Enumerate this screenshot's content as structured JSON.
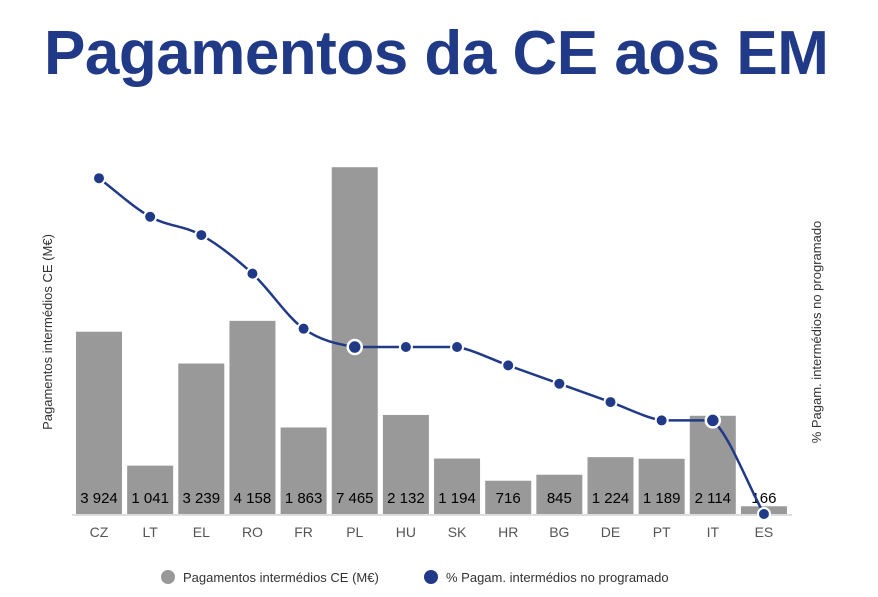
{
  "chart_data": {
    "type": "bar",
    "title": "Pagamentos da CE aos EM",
    "categories": [
      "CZ",
      "LT",
      "EL",
      "RO",
      "FR",
      "PL",
      "HU",
      "SK",
      "HR",
      "BG",
      "DE",
      "PT",
      "IT",
      "ES"
    ],
    "series": [
      {
        "name": "Pagamentos intermédios CE (M€)",
        "type": "bar",
        "axis": "left",
        "color": "#999999",
        "values": [
          3924,
          1041,
          3239,
          4158,
          1863,
          7465,
          2132,
          1194,
          716,
          845,
          1224,
          1189,
          2114,
          166
        ],
        "labels": [
          "3 924",
          "1 041",
          "3 239",
          "4 158",
          "1 863",
          "7 465",
          "2 132",
          "1 194",
          "716",
          "845",
          "1 224",
          "1 189",
          "2 114",
          "166"
        ]
      },
      {
        "name": "% Pagam. intermédios no programado",
        "type": "line",
        "axis": "right",
        "color": "#213a87",
        "values": [
          18.3,
          16.2,
          15.2,
          13.1,
          10.1,
          9.1,
          9.1,
          9.1,
          8.1,
          7.1,
          6.1,
          5.1,
          5.1,
          0
        ],
        "highlighted": [
          "PL",
          "IT"
        ]
      }
    ],
    "ylabel": "Pagamentos intermédios CE (M€)",
    "y2label": "% Pagam. intermédios no programado",
    "ylim": [
      0,
      7900
    ],
    "y2lim": [
      0,
      20
    ],
    "grid": false,
    "legend": "bottom"
  }
}
